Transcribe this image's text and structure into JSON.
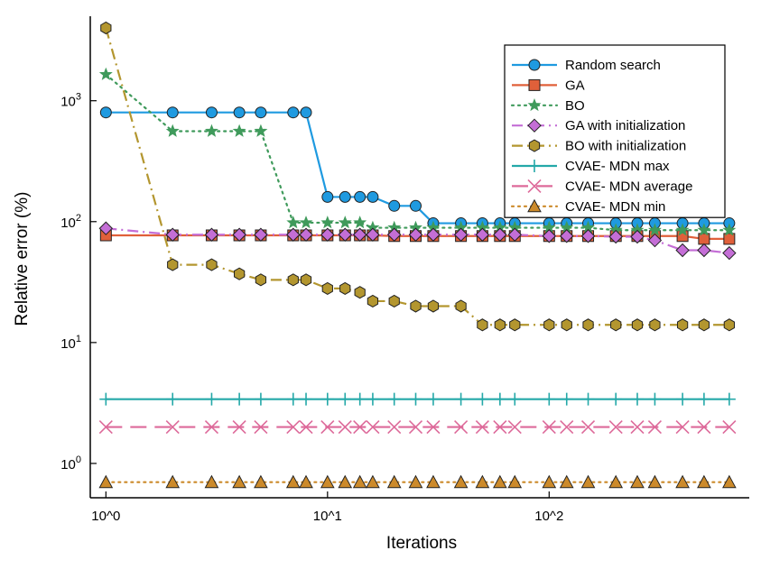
{
  "chart_data": {
    "type": "line",
    "xlabel": "Iterations",
    "ylabel": "Relative error (%)",
    "x_scale": "log",
    "y_scale": "log",
    "xlim": [
      0.85,
      800
    ],
    "ylim": [
      0.52,
      5000
    ],
    "grid": false,
    "legend_position": "top-right",
    "x_ticks": [
      {
        "value": 1,
        "label": "10^0"
      },
      {
        "value": 10,
        "label": "10^1"
      },
      {
        "value": 100,
        "label": "10^2"
      }
    ],
    "y_ticks": [
      {
        "value": 1,
        "base": "10",
        "exp": "0"
      },
      {
        "value": 10,
        "base": "10",
        "exp": "1"
      },
      {
        "value": 100,
        "base": "10",
        "exp": "2"
      },
      {
        "value": 1000,
        "base": "10",
        "exp": "3"
      }
    ],
    "series": [
      {
        "name": "Random search",
        "color": "#1f9ae0",
        "dash": "solid",
        "marker": "circle",
        "points": [
          [
            1,
            800
          ],
          [
            2,
            800
          ],
          [
            3,
            800
          ],
          [
            4,
            800
          ],
          [
            5,
            800
          ],
          [
            7,
            800
          ],
          [
            8,
            800
          ],
          [
            10,
            160
          ],
          [
            12,
            160
          ],
          [
            14,
            160
          ],
          [
            16,
            160
          ],
          [
            20,
            135
          ],
          [
            25,
            135
          ],
          [
            30,
            97
          ],
          [
            40,
            97
          ],
          [
            50,
            97
          ],
          [
            60,
            97
          ],
          [
            70,
            97
          ],
          [
            100,
            97
          ],
          [
            120,
            97
          ],
          [
            150,
            97
          ],
          [
            200,
            97
          ],
          [
            250,
            97
          ],
          [
            300,
            97
          ],
          [
            400,
            97
          ],
          [
            500,
            97
          ],
          [
            650,
            97
          ]
        ]
      },
      {
        "name": "GA",
        "color": "#e0603a",
        "dash": "solid",
        "marker": "square",
        "points": [
          [
            1,
            77
          ],
          [
            2,
            77
          ],
          [
            3,
            77
          ],
          [
            4,
            77
          ],
          [
            5,
            77
          ],
          [
            7,
            77
          ],
          [
            8,
            77
          ],
          [
            10,
            77
          ],
          [
            12,
            77
          ],
          [
            14,
            77
          ],
          [
            16,
            77
          ],
          [
            20,
            76
          ],
          [
            25,
            76
          ],
          [
            30,
            76
          ],
          [
            40,
            76
          ],
          [
            50,
            76
          ],
          [
            60,
            76
          ],
          [
            70,
            76
          ],
          [
            100,
            76
          ],
          [
            120,
            76
          ],
          [
            150,
            76
          ],
          [
            200,
            76
          ],
          [
            250,
            76
          ],
          [
            300,
            76
          ],
          [
            400,
            76
          ],
          [
            500,
            72
          ],
          [
            650,
            72
          ]
        ]
      },
      {
        "name": "BO",
        "color": "#3f9a5b",
        "dash": "dot",
        "marker": "star",
        "points": [
          [
            1,
            1650
          ],
          [
            2,
            560
          ],
          [
            3,
            560
          ],
          [
            4,
            560
          ],
          [
            5,
            560
          ],
          [
            7,
            98
          ],
          [
            8,
            98
          ],
          [
            10,
            98
          ],
          [
            12,
            98
          ],
          [
            14,
            98
          ],
          [
            16,
            89
          ],
          [
            20,
            89
          ],
          [
            25,
            89
          ],
          [
            30,
            89
          ],
          [
            40,
            89
          ],
          [
            50,
            89
          ],
          [
            60,
            89
          ],
          [
            70,
            89
          ],
          [
            100,
            89
          ],
          [
            120,
            89
          ],
          [
            150,
            89
          ],
          [
            200,
            85
          ],
          [
            250,
            85
          ],
          [
            300,
            85
          ],
          [
            400,
            85
          ],
          [
            500,
            85
          ],
          [
            650,
            85
          ]
        ]
      },
      {
        "name": "GA with initialization",
        "color": "#c46ed6",
        "dash": "dashdot",
        "marker": "diamond",
        "points": [
          [
            1,
            88
          ],
          [
            2,
            78
          ],
          [
            3,
            78
          ],
          [
            4,
            78
          ],
          [
            5,
            78
          ],
          [
            7,
            78
          ],
          [
            8,
            78
          ],
          [
            10,
            78
          ],
          [
            12,
            78
          ],
          [
            14,
            78
          ],
          [
            16,
            78
          ],
          [
            20,
            78
          ],
          [
            25,
            78
          ],
          [
            30,
            78
          ],
          [
            40,
            78
          ],
          [
            50,
            78
          ],
          [
            60,
            78
          ],
          [
            70,
            78
          ],
          [
            100,
            76
          ],
          [
            120,
            76
          ],
          [
            150,
            76
          ],
          [
            200,
            75
          ],
          [
            250,
            75
          ],
          [
            300,
            70
          ],
          [
            400,
            58
          ],
          [
            500,
            58
          ],
          [
            650,
            55
          ]
        ]
      },
      {
        "name": "BO with initialization",
        "color": "#b3962f",
        "dash": "dashdot",
        "marker": "hexagon",
        "points": [
          [
            1,
            4000
          ],
          [
            2,
            44
          ],
          [
            3,
            44
          ],
          [
            4,
            37
          ],
          [
            5,
            33
          ],
          [
            7,
            33
          ],
          [
            8,
            33
          ],
          [
            10,
            28
          ],
          [
            12,
            28
          ],
          [
            14,
            26
          ],
          [
            16,
            22
          ],
          [
            20,
            22
          ],
          [
            25,
            20
          ],
          [
            30,
            20
          ],
          [
            40,
            20
          ],
          [
            50,
            14
          ],
          [
            60,
            14
          ],
          [
            70,
            14
          ],
          [
            100,
            14
          ],
          [
            120,
            14
          ],
          [
            150,
            14
          ],
          [
            200,
            14
          ],
          [
            250,
            14
          ],
          [
            300,
            14
          ],
          [
            400,
            14
          ],
          [
            500,
            14
          ],
          [
            650,
            14
          ]
        ]
      },
      {
        "name": "CVAE- MDN max",
        "color": "#24a8a8",
        "dash": "solid",
        "marker": "plus",
        "points": [
          [
            1,
            3.4
          ],
          [
            2,
            3.4
          ],
          [
            3,
            3.4
          ],
          [
            4,
            3.4
          ],
          [
            5,
            3.4
          ],
          [
            7,
            3.4
          ],
          [
            8,
            3.4
          ],
          [
            10,
            3.4
          ],
          [
            12,
            3.4
          ],
          [
            14,
            3.4
          ],
          [
            16,
            3.4
          ],
          [
            20,
            3.4
          ],
          [
            25,
            3.4
          ],
          [
            30,
            3.4
          ],
          [
            40,
            3.4
          ],
          [
            50,
            3.4
          ],
          [
            60,
            3.4
          ],
          [
            70,
            3.4
          ],
          [
            100,
            3.4
          ],
          [
            120,
            3.4
          ],
          [
            150,
            3.4
          ],
          [
            200,
            3.4
          ],
          [
            250,
            3.4
          ],
          [
            300,
            3.4
          ],
          [
            400,
            3.4
          ],
          [
            500,
            3.4
          ],
          [
            650,
            3.4
          ]
        ]
      },
      {
        "name": "CVAE- MDN average",
        "color": "#dd6a9a",
        "dash": "longdash",
        "marker": "x",
        "points": [
          [
            1,
            2
          ],
          [
            2,
            2
          ],
          [
            3,
            2
          ],
          [
            4,
            2
          ],
          [
            5,
            2
          ],
          [
            7,
            2
          ],
          [
            8,
            2
          ],
          [
            10,
            2
          ],
          [
            12,
            2
          ],
          [
            14,
            2
          ],
          [
            16,
            2
          ],
          [
            20,
            2
          ],
          [
            25,
            2
          ],
          [
            30,
            2
          ],
          [
            40,
            2
          ],
          [
            50,
            2
          ],
          [
            60,
            2
          ],
          [
            70,
            2
          ],
          [
            100,
            2
          ],
          [
            120,
            2
          ],
          [
            150,
            2
          ],
          [
            200,
            2
          ],
          [
            250,
            2
          ],
          [
            300,
            2
          ],
          [
            400,
            2
          ],
          [
            500,
            2
          ],
          [
            650,
            2
          ]
        ]
      },
      {
        "name": "CVAE- MDN min",
        "color": "#cc8a2a",
        "dash": "dot",
        "marker": "triangle",
        "points": [
          [
            1,
            0.7
          ],
          [
            2,
            0.7
          ],
          [
            3,
            0.7
          ],
          [
            4,
            0.7
          ],
          [
            5,
            0.7
          ],
          [
            7,
            0.7
          ],
          [
            8,
            0.7
          ],
          [
            10,
            0.7
          ],
          [
            12,
            0.7
          ],
          [
            14,
            0.7
          ],
          [
            16,
            0.7
          ],
          [
            20,
            0.7
          ],
          [
            25,
            0.7
          ],
          [
            30,
            0.7
          ],
          [
            40,
            0.7
          ],
          [
            50,
            0.7
          ],
          [
            60,
            0.7
          ],
          [
            70,
            0.7
          ],
          [
            100,
            0.7
          ],
          [
            120,
            0.7
          ],
          [
            150,
            0.7
          ],
          [
            200,
            0.7
          ],
          [
            250,
            0.7
          ],
          [
            300,
            0.7
          ],
          [
            400,
            0.7
          ],
          [
            500,
            0.7
          ],
          [
            650,
            0.7
          ]
        ]
      }
    ]
  }
}
